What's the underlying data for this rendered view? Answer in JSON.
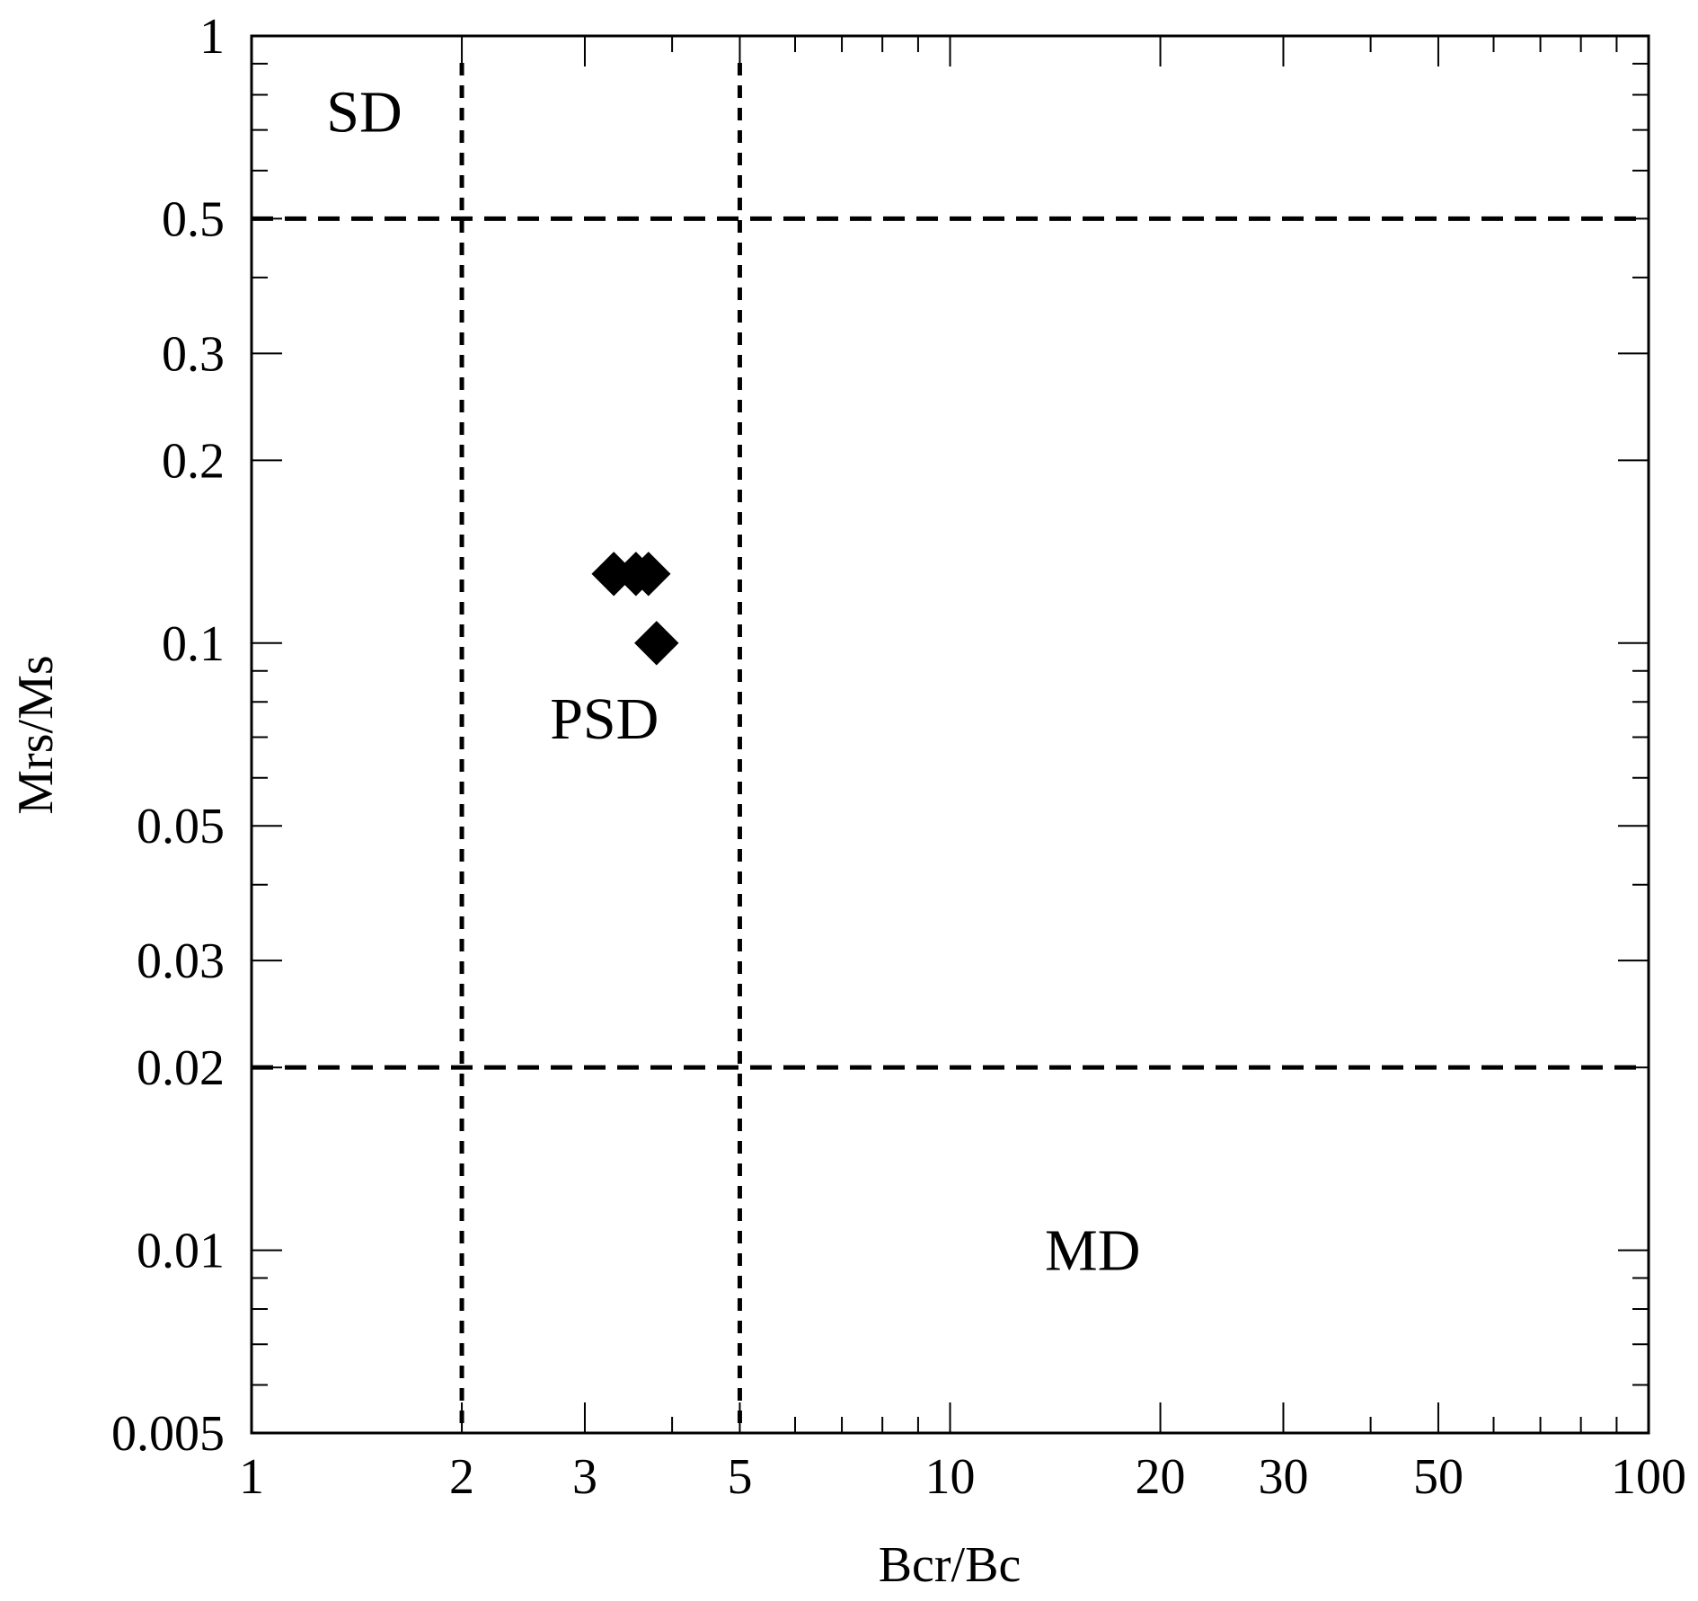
{
  "chart_data": {
    "type": "scatter",
    "title": "",
    "xlabel": "Bcr/Bc",
    "ylabel": "Mrs/Ms",
    "x_scale": "log",
    "y_scale": "log",
    "xlim": [
      1,
      100
    ],
    "ylim": [
      0.005,
      1
    ],
    "x_ticks": [
      {
        "value": 1,
        "label": "1"
      },
      {
        "value": 2,
        "label": "2"
      },
      {
        "value": 3,
        "label": "3"
      },
      {
        "value": 5,
        "label": "5"
      },
      {
        "value": 10,
        "label": "10"
      },
      {
        "value": 20,
        "label": "20"
      },
      {
        "value": 30,
        "label": "30"
      },
      {
        "value": 50,
        "label": "50"
      },
      {
        "value": 100,
        "label": "100"
      }
    ],
    "y_ticks": [
      {
        "value": 1,
        "label": "1"
      },
      {
        "value": 0.5,
        "label": "0.5"
      },
      {
        "value": 0.3,
        "label": "0.3"
      },
      {
        "value": 0.2,
        "label": "0.2"
      },
      {
        "value": 0.1,
        "label": "0.1"
      },
      {
        "value": 0.05,
        "label": "0.05"
      },
      {
        "value": 0.03,
        "label": "0.03"
      },
      {
        "value": 0.02,
        "label": "0.02"
      },
      {
        "value": 0.01,
        "label": "0.01"
      },
      {
        "value": 0.005,
        "label": "0.005"
      }
    ],
    "series": [
      {
        "marker": "diamond",
        "color": "#000000",
        "x": [
          3.3,
          3.55,
          3.7,
          3.8
        ],
        "y": [
          0.13,
          0.13,
          0.13,
          0.1
        ]
      }
    ],
    "reference_lines": {
      "vertical_x": [
        2,
        5
      ],
      "horizontal_y": [
        0.5,
        0.02
      ],
      "style": "dashed"
    },
    "regions": [
      {
        "label": "SD",
        "x": 1.45,
        "y": 0.75
      },
      {
        "label": "PSD",
        "x": 3.2,
        "y": 0.075
      },
      {
        "label": "MD",
        "x": 16,
        "y": 0.01
      }
    ],
    "grid": false,
    "legend": "none"
  }
}
